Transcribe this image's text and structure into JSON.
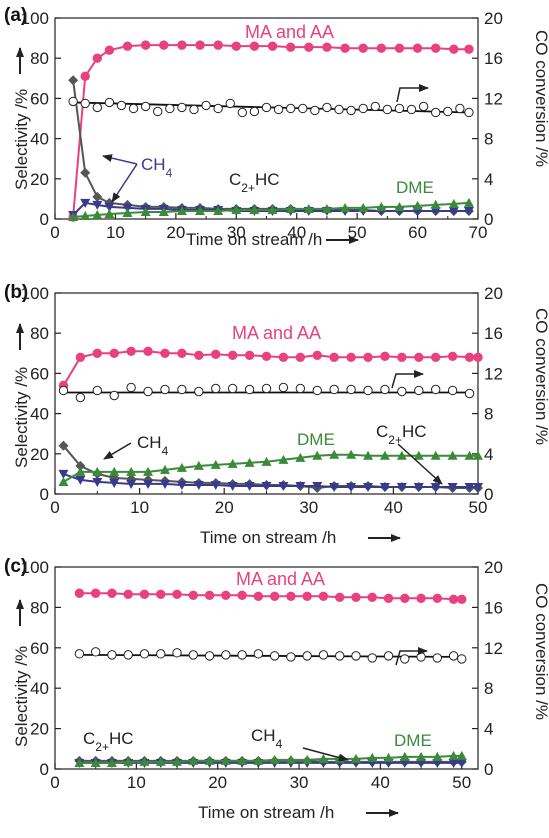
{
  "chart_data": [
    {
      "panel_label": "(a)",
      "type": "line",
      "xlabel": "Time on stream /h",
      "ylabel": "Selectivity /%",
      "y2label": "CO conversion /%",
      "xlim": [
        0,
        70
      ],
      "ylim": [
        0,
        100
      ],
      "y2lim": [
        0,
        20
      ],
      "xticks": [
        "0",
        "10",
        "20",
        "30",
        "40",
        "50",
        "60",
        "70"
      ],
      "yticks": [
        "0",
        "20",
        "40",
        "60",
        "80",
        "100"
      ],
      "y2ticks": [
        "0",
        "4",
        "8",
        "12",
        "16",
        "20"
      ],
      "series": [
        {
          "name": "MA and AA",
          "axis": "left",
          "color": "#e8417f",
          "marker": "circle",
          "x": [
            3,
            5,
            7,
            9,
            12,
            15,
            18,
            21,
            24,
            27,
            30,
            33,
            36,
            39,
            42,
            45,
            48,
            51,
            54,
            57,
            60,
            63,
            66,
            68.5
          ],
          "y": [
            1,
            71,
            80,
            84,
            86,
            86.5,
            86.5,
            86.5,
            86.5,
            86.5,
            86,
            86,
            86,
            85.5,
            85.5,
            85.5,
            85,
            85,
            85,
            85,
            85,
            85,
            84.5,
            84.5
          ]
        },
        {
          "name": "C2+HC",
          "axis": "left",
          "color": "#555555",
          "marker": "diamond",
          "x": [
            3,
            5,
            7,
            9,
            12,
            15,
            18,
            21,
            24,
            27,
            30,
            33,
            36,
            39,
            42,
            45,
            48,
            51,
            54,
            57,
            60,
            63,
            66,
            68.5
          ],
          "y": [
            69,
            23,
            11,
            8,
            7,
            6,
            6,
            5.5,
            5.5,
            5,
            5,
            5,
            5,
            5,
            4.5,
            4.5,
            4.5,
            4.5,
            4,
            4,
            4,
            4,
            4,
            4
          ]
        },
        {
          "name": "CH4",
          "axis": "left",
          "color": "#3a3a8c",
          "marker": "triangle-down",
          "x": [
            3,
            5,
            7,
            9,
            12,
            15,
            18,
            21,
            24,
            27,
            30,
            33,
            36,
            39,
            42,
            45,
            48,
            51,
            54,
            57,
            60,
            63,
            66,
            68.5
          ],
          "y": [
            2,
            8,
            7,
            6,
            5.5,
            5,
            5,
            4.5,
            4.5,
            4.5,
            4,
            4,
            4,
            4,
            4,
            4,
            4,
            4,
            4,
            4,
            4,
            4,
            4,
            4
          ]
        },
        {
          "name": "DME",
          "axis": "left",
          "color": "#3a8a3a",
          "marker": "triangle-up",
          "x": [
            3,
            5,
            7,
            9,
            12,
            15,
            18,
            21,
            24,
            27,
            30,
            33,
            36,
            39,
            42,
            45,
            48,
            51,
            54,
            57,
            60,
            63,
            66,
            68.5
          ],
          "y": [
            1,
            1.5,
            2,
            2.5,
            3,
            3.5,
            3.5,
            4,
            4,
            4,
            4.5,
            4.5,
            4.5,
            5,
            5,
            5,
            5.5,
            5.5,
            6,
            6,
            6.5,
            7,
            7.5,
            8
          ]
        },
        {
          "name": "CO conversion",
          "axis": "right",
          "color": "#000000",
          "marker": "open-circle",
          "x": [
            3,
            5,
            7,
            9,
            11,
            13,
            15,
            17,
            19,
            21,
            23,
            25,
            27,
            29,
            31,
            33,
            35,
            37,
            39,
            41,
            43,
            45,
            47,
            49,
            51,
            53,
            55,
            57,
            59,
            61,
            63,
            65,
            67,
            68.5
          ],
          "y": [
            11.7,
            11.5,
            11.1,
            11.6,
            11.3,
            11.0,
            11.2,
            10.7,
            11.0,
            11.1,
            10.9,
            11.3,
            11.0,
            11.5,
            10.6,
            10.7,
            11.1,
            10.9,
            11.0,
            11.0,
            10.8,
            11.1,
            10.9,
            10.8,
            11.0,
            11.2,
            10.9,
            11.0,
            10.9,
            11.2,
            10.6,
            10.7,
            11.0,
            10.6
          ],
          "fit": [
            11.6,
            10.6
          ]
        }
      ],
      "annotations": [
        {
          "text": "MA and AA",
          "color": "#e8417f"
        },
        {
          "text": "C",
          "sub": "2+",
          "tail": "HC",
          "color": "#222222"
        },
        {
          "text": "CH",
          "sub": "4",
          "color": "#3a3a8c"
        },
        {
          "text": "DME",
          "color": "#3a8a3a"
        }
      ],
      "grid": false
    },
    {
      "panel_label": "(b)",
      "type": "line",
      "xlabel": "Time on stream /h",
      "ylabel": "Selectivity /%",
      "y2label": "CO conversion /%",
      "xlim": [
        0,
        50
      ],
      "ylim": [
        0,
        100
      ],
      "y2lim": [
        0,
        20
      ],
      "xticks": [
        "0",
        "10",
        "20",
        "30",
        "40",
        "50"
      ],
      "yticks": [
        "0",
        "20",
        "40",
        "60",
        "80",
        "100"
      ],
      "y2ticks": [
        "0",
        "4",
        "8",
        "12",
        "16",
        "20"
      ],
      "series": [
        {
          "name": "MA and AA",
          "axis": "left",
          "color": "#e8417f",
          "marker": "circle",
          "x": [
            1,
            3,
            5,
            7,
            9,
            11,
            13,
            15,
            17,
            19,
            21,
            23,
            25,
            27,
            29,
            31,
            33,
            35,
            37,
            39,
            41,
            43,
            45,
            47,
            49,
            50
          ],
          "y": [
            54,
            68,
            70,
            70,
            71,
            71,
            70,
            70,
            69,
            69.5,
            69,
            69,
            68.5,
            68,
            68,
            69,
            68,
            68,
            68,
            68.5,
            68,
            68,
            68,
            68.5,
            68,
            68
          ]
        },
        {
          "name": "C2+HC",
          "axis": "left",
          "color": "#555555",
          "marker": "diamond",
          "x": [
            1,
            3,
            5,
            7,
            9,
            11,
            13,
            15,
            17,
            19,
            21,
            23,
            25,
            27,
            29,
            31,
            33,
            35,
            37,
            39,
            41,
            43,
            45,
            47,
            49,
            50
          ],
          "y": [
            24,
            14,
            10,
            8,
            7.5,
            7,
            6.5,
            6,
            5.5,
            5.5,
            5,
            5,
            4.5,
            4.5,
            4,
            3,
            4,
            4,
            4,
            3.5,
            3.5,
            3.5,
            3.5,
            3,
            3,
            3
          ]
        },
        {
          "name": "CH4",
          "axis": "left",
          "color": "#3a3a8c",
          "marker": "triangle-down",
          "x": [
            1,
            3,
            5,
            7,
            9,
            11,
            13,
            15,
            17,
            19,
            21,
            23,
            25,
            27,
            29,
            31,
            33,
            35,
            37,
            39,
            41,
            43,
            45,
            47,
            49,
            50
          ],
          "y": [
            10,
            7,
            6,
            5.5,
            5,
            5,
            5,
            4.5,
            4.5,
            4.5,
            4,
            4,
            4,
            4,
            4,
            4,
            3.5,
            3.5,
            3.5,
            3.5,
            3.5,
            3.5,
            3.5,
            3.5,
            3.5,
            3.5
          ]
        },
        {
          "name": "DME",
          "axis": "left",
          "color": "#3a8a3a",
          "marker": "triangle-up",
          "x": [
            1,
            3,
            5,
            7,
            9,
            11,
            13,
            15,
            17,
            19,
            21,
            23,
            25,
            27,
            29,
            31,
            33,
            35,
            37,
            39,
            41,
            43,
            45,
            47,
            49,
            50
          ],
          "y": [
            6,
            11,
            11,
            11,
            11,
            11,
            12,
            13,
            14,
            14.5,
            15,
            15.5,
            16,
            17,
            18,
            19,
            19.5,
            19.5,
            19,
            19,
            19,
            19,
            19,
            19,
            19,
            19
          ]
        },
        {
          "name": "CO conversion",
          "axis": "right",
          "color": "#000000",
          "marker": "open-circle",
          "x": [
            1,
            3,
            5,
            7,
            9,
            11,
            13,
            15,
            17,
            19,
            21,
            23,
            25,
            27,
            29,
            31,
            33,
            35,
            37,
            39,
            41,
            43,
            45,
            47,
            49
          ],
          "y": [
            10.3,
            9.6,
            10.3,
            9.8,
            10.6,
            10.2,
            10.4,
            10.4,
            10.2,
            10.5,
            10.5,
            10.4,
            10.5,
            10.6,
            10.5,
            10.3,
            10.4,
            10.4,
            10.3,
            10.4,
            10.2,
            10.3,
            10.4,
            10.3,
            10.0
          ],
          "fit": [
            10.1,
            10.1
          ]
        }
      ],
      "annotations": [
        {
          "text": "MA and AA",
          "color": "#e8417f"
        },
        {
          "text": "CH",
          "sub": "4",
          "color": "#222222"
        },
        {
          "text": "DME",
          "color": "#3a8a3a"
        },
        {
          "text": "C",
          "sub": "2+",
          "tail": "HC",
          "color": "#222222"
        }
      ],
      "grid": false
    },
    {
      "panel_label": "(c)",
      "type": "line",
      "xlabel": "Time on stream /h",
      "ylabel": "Selectivity /%",
      "y2label": "CO conversion /%",
      "xlim": [
        0,
        52
      ],
      "ylim": [
        0,
        100
      ],
      "y2lim": [
        0,
        20
      ],
      "xticks": [
        "0",
        "10",
        "20",
        "30",
        "40",
        "50"
      ],
      "yticks": [
        "0",
        "20",
        "40",
        "60",
        "80",
        "100"
      ],
      "y2ticks": [
        "0",
        "4",
        "8",
        "12",
        "16",
        "20"
      ],
      "series": [
        {
          "name": "MA and AA",
          "axis": "left",
          "color": "#e8417f",
          "marker": "circle",
          "x": [
            3,
            5,
            7,
            9,
            11,
            13,
            15,
            17,
            19,
            21,
            23,
            25,
            27,
            29,
            31,
            33,
            35,
            37,
            39,
            41,
            43,
            45,
            47,
            49,
            50
          ],
          "y": [
            87,
            87,
            87,
            86.5,
            86.5,
            86.5,
            86.5,
            86,
            86,
            86,
            86,
            85.5,
            85.5,
            85.5,
            85.5,
            85.5,
            85,
            85,
            85,
            84.5,
            84.5,
            84.5,
            84.5,
            84,
            84
          ]
        },
        {
          "name": "C2+HC",
          "axis": "left",
          "color": "#555555",
          "marker": "diamond",
          "x": [
            3,
            5,
            7,
            9,
            11,
            13,
            15,
            17,
            19,
            21,
            23,
            25,
            27,
            29,
            31,
            33,
            35,
            37,
            39,
            41,
            43,
            45,
            47,
            49,
            50
          ],
          "y": [
            4,
            4,
            4,
            4,
            4,
            4,
            4,
            4,
            4,
            4,
            4,
            4,
            4,
            4,
            4,
            3.5,
            3.5,
            3.5,
            3.5,
            3.5,
            3.5,
            3.5,
            3.5,
            3.5,
            3.5
          ]
        },
        {
          "name": "CH4",
          "axis": "left",
          "color": "#3a3a8c",
          "marker": "triangle-down",
          "x": [
            3,
            5,
            7,
            9,
            11,
            13,
            15,
            17,
            19,
            21,
            23,
            25,
            27,
            29,
            31,
            33,
            35,
            37,
            39,
            41,
            43,
            45,
            47,
            49,
            50
          ],
          "y": [
            3,
            3,
            3,
            3,
            3,
            3,
            3,
            3,
            3,
            3,
            3,
            3,
            3,
            3,
            3,
            3,
            3,
            3,
            3,
            3,
            3,
            3,
            3,
            3,
            3
          ]
        },
        {
          "name": "DME",
          "axis": "left",
          "color": "#3a8a3a",
          "marker": "triangle-up",
          "x": [
            3,
            5,
            7,
            9,
            11,
            13,
            15,
            17,
            19,
            21,
            23,
            25,
            27,
            29,
            31,
            33,
            35,
            37,
            39,
            41,
            43,
            45,
            47,
            49,
            50
          ],
          "y": [
            3,
            3,
            3,
            3.5,
            3.5,
            3.5,
            3.5,
            4,
            4,
            4,
            4,
            4,
            4.5,
            4.5,
            4.5,
            5,
            5,
            5,
            5.5,
            5.5,
            6,
            6,
            6,
            6.5,
            6.5
          ]
        },
        {
          "name": "CO conversion",
          "axis": "right",
          "color": "#000000",
          "marker": "open-circle",
          "x": [
            3,
            5,
            7,
            9,
            11,
            13,
            15,
            17,
            19,
            21,
            23,
            25,
            27,
            29,
            31,
            33,
            35,
            37,
            39,
            41,
            43,
            45,
            47,
            49,
            50
          ],
          "y": [
            11.4,
            11.6,
            11.3,
            11.3,
            11.4,
            11.4,
            11.5,
            11.3,
            11.2,
            11.3,
            11.3,
            11.4,
            11.2,
            11.1,
            11.2,
            11.3,
            11.2,
            11.2,
            11.0,
            11.2,
            10.9,
            11.1,
            11.0,
            11.2,
            10.9
          ],
          "fit": [
            11.3,
            11.1
          ]
        }
      ],
      "annotations": [
        {
          "text": "MA and AA",
          "color": "#e8417f"
        },
        {
          "text": "C",
          "sub": "2+",
          "tail": "HC",
          "color": "#222222"
        },
        {
          "text": "CH",
          "sub": "4",
          "color": "#222222"
        },
        {
          "text": "DME",
          "color": "#3a8a3a"
        }
      ],
      "grid": false
    }
  ]
}
